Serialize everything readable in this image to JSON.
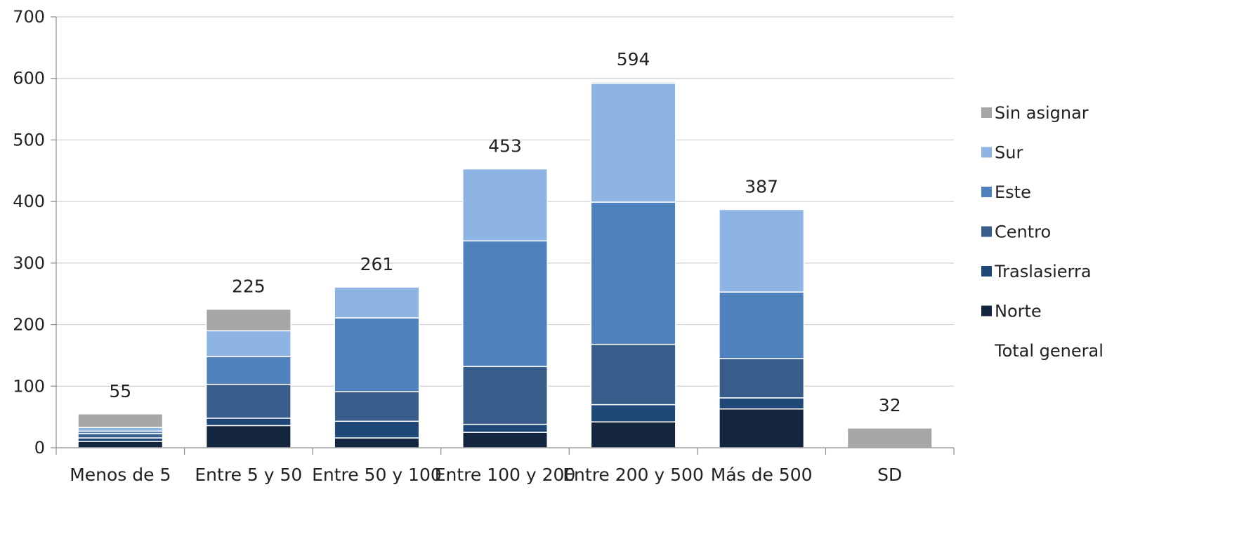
{
  "chart_data": {
    "type": "bar",
    "stacked": true,
    "title": "",
    "xlabel": "",
    "ylabel": "",
    "ylim": [
      0,
      700
    ],
    "yticks": [
      0,
      100,
      200,
      300,
      400,
      500,
      600,
      700
    ],
    "grid": true,
    "legend_position": "right",
    "categories": [
      "Menos de 5",
      "Entre 5 y 50",
      "Entre 50 y 100",
      "Entre 100 y 200",
      "Entre 200 y 500",
      "Más de 500",
      "SD"
    ],
    "series": [
      {
        "name": "Norte",
        "color": "#14263f",
        "values": [
          10,
          36,
          16,
          25,
          42,
          63,
          0
        ]
      },
      {
        "name": "Traslasierra",
        "color": "#1f4878",
        "values": [
          6,
          12,
          27,
          13,
          28,
          18,
          0
        ]
      },
      {
        "name": "Centro",
        "color": "#385d8a",
        "values": [
          7,
          55,
          48,
          94,
          98,
          64,
          0
        ]
      },
      {
        "name": "Este",
        "color": "#4f81bd",
        "values": [
          4,
          45,
          120,
          204,
          231,
          108,
          0
        ]
      },
      {
        "name": "Sur",
        "color": "#8eb4e3",
        "values": [
          6,
          42,
          50,
          117,
          193,
          134,
          0
        ]
      },
      {
        "name": "Sin asignar",
        "color": "#a6a6a6",
        "values": [
          22,
          35,
          0,
          0,
          2,
          0,
          32
        ]
      }
    ],
    "totals_series_name": "Total general",
    "totals": [
      55,
      225,
      261,
      453,
      594,
      387,
      32
    ]
  }
}
